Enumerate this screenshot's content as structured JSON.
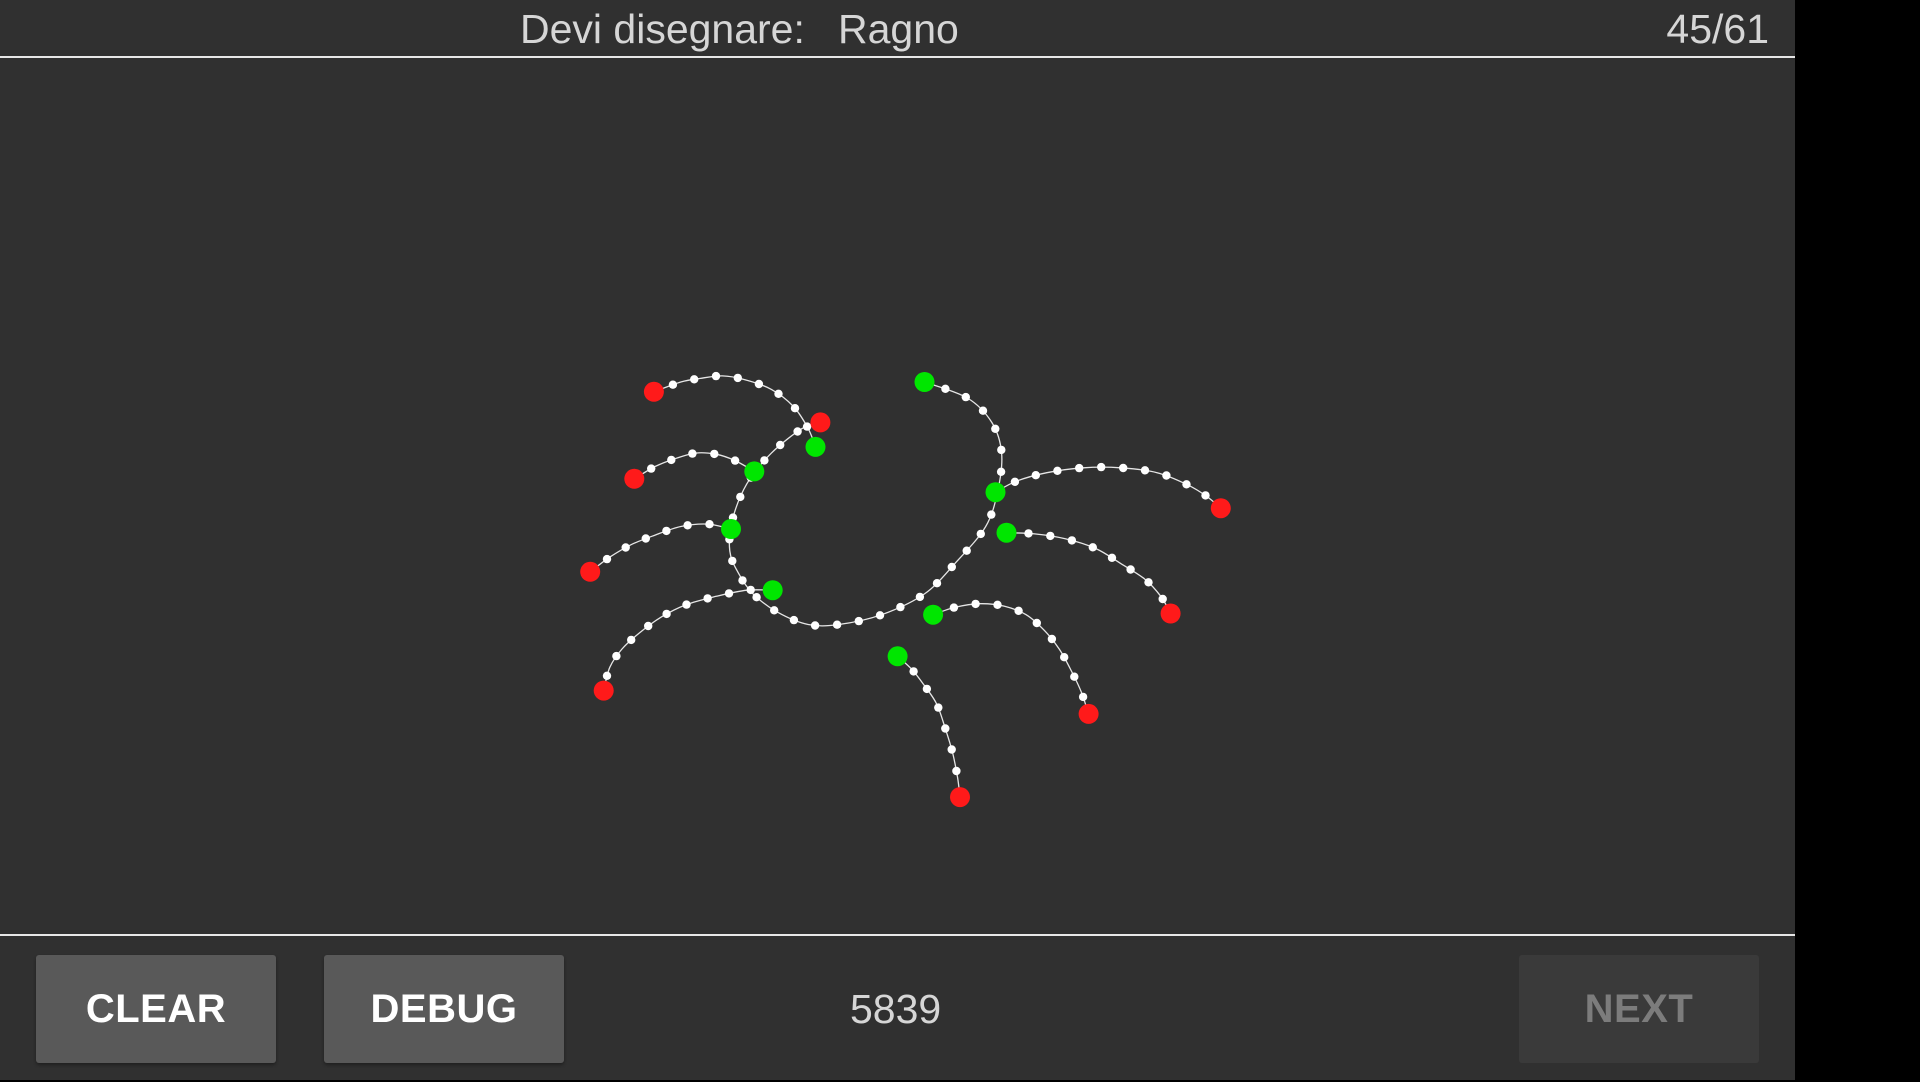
{
  "header": {
    "prompt_label": "Devi disegnare:",
    "prompt_word": "Ragno",
    "progress": "45/61"
  },
  "footer": {
    "clear_label": "CLEAR",
    "debug_label": "DEBUG",
    "score": "5839",
    "next_label": "NEXT"
  },
  "colors": {
    "background": "#303030",
    "stroke": "#e6e6e6",
    "start_point": "#00e600",
    "end_point": "#ff1a1a",
    "sample_point": "#ffffff"
  },
  "legend": {
    "start_point": "green",
    "end_point": "red",
    "sample_point": "white"
  }
}
